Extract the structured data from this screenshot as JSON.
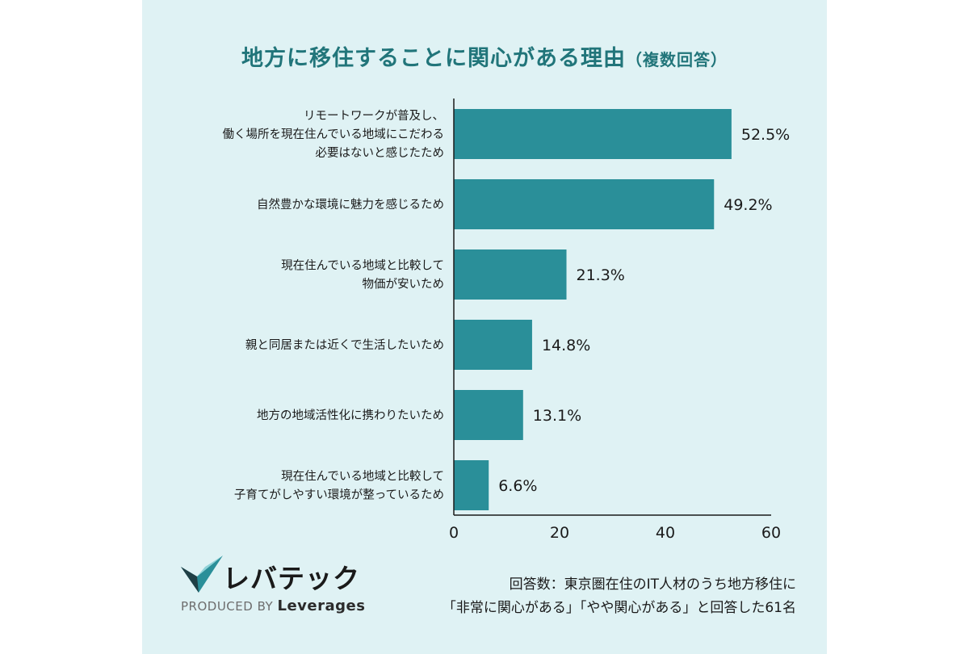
{
  "title": {
    "main": "地方に移住することに関心がある理由",
    "sub": "（複数回答）"
  },
  "chart_data": {
    "type": "bar",
    "orientation": "horizontal",
    "categories": [
      [
        "リモートワークが普及し、",
        "働く場所を現在住んでいる地域にこだわる",
        "必要はないと感じたため"
      ],
      [
        "自然豊かな環境に魅力を感じるため"
      ],
      [
        "現在住んでいる地域と比較して",
        "物価が安いため"
      ],
      [
        "親と同居または近くで生活したいため"
      ],
      [
        "地方の地域活性化に携わりたいため"
      ],
      [
        "現在住んでいる地域と比較して",
        "子育てがしやすい環境が整っているため"
      ]
    ],
    "values": [
      52.5,
      49.2,
      21.3,
      14.8,
      13.1,
      6.6
    ],
    "value_suffix": "%",
    "xlim": [
      0,
      60
    ],
    "xticks": [
      0,
      20,
      40,
      60
    ],
    "bar_color": "#2a8f99",
    "grid": false
  },
  "logo": {
    "name": "レバテック",
    "produced_prefix": "PRODUCED BY",
    "produced_brand": "Leverages"
  },
  "note": {
    "line1": "回答数：東京圏在住のIT人材のうち地方移住に",
    "line2": "「非常に関心がある」「やや関心がある」と回答した61名"
  },
  "colors": {
    "background": "#dff2f4",
    "title": "#21757a",
    "bar": "#2a8f99"
  }
}
